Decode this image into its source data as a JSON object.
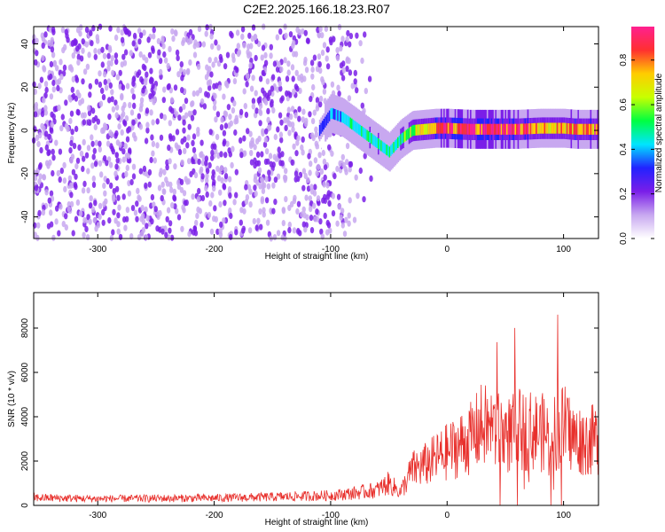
{
  "figure_title": "C2E2.2025.166.18.23.R07",
  "chart_data": [
    {
      "type": "heatmap",
      "xlabel": "Height of straight line (km)",
      "ylabel": "Frequency (Hz)",
      "xlim": [
        -355,
        130
      ],
      "ylim": [
        -50,
        48
      ],
      "x_ticks": [
        -300,
        -200,
        -100,
        0,
        100
      ],
      "x_tick_labels": [
        "-300",
        "-200",
        "-100",
        "0",
        "100"
      ],
      "y_ticks": [
        -40,
        -20,
        0,
        20,
        40
      ],
      "y_tick_labels": [
        "-40",
        "-20",
        "0",
        "20",
        "40"
      ],
      "grid": false,
      "colorbar": {
        "label": "Normalized spectral amplitude",
        "range": [
          0,
          0.95
        ],
        "ticks": [
          0,
          0.2,
          0.4,
          0.6,
          0.8
        ],
        "tick_labels": [
          "0.0",
          "0.2",
          "0.4",
          "0.6",
          "0.8"
        ],
        "colormap": [
          "#ffffff",
          "#c8a8f0",
          "#7a1ee8",
          "#2222ff",
          "#00e5ff",
          "#00ff40",
          "#c8ff00",
          "#ffcc00",
          "#ff3030",
          "#ff2090"
        ]
      },
      "features": {
        "noise_region_x": [
          -355,
          -100
        ],
        "noise_amplitude": 0.2,
        "signal_track": {
          "x": [
            -110,
            -100,
            -90,
            -80,
            -70,
            -60,
            -50,
            -40,
            -30,
            -20,
            -10,
            0,
            20,
            40,
            60,
            80,
            90,
            100,
            110,
            130
          ],
          "y": [
            0,
            8,
            6,
            2,
            -2,
            -6,
            -10,
            -4,
            0,
            0.5,
            1,
            1,
            0.5,
            0.5,
            0.5,
            1,
            1,
            1,
            0.5,
            0.5
          ],
          "amplitude": [
            0.25,
            0.35,
            0.4,
            0.45,
            0.45,
            0.5,
            0.45,
            0.5,
            0.6,
            0.7,
            0.8,
            0.85,
            0.9,
            0.9,
            0.85,
            0.75,
            0.7,
            0.75,
            0.8,
            0.8
          ]
        }
      }
    },
    {
      "type": "line",
      "xlabel": "Height of straight line (km)",
      "ylabel": "SNR (10 * v/v)",
      "xlim": [
        -355,
        130
      ],
      "ylim": [
        0,
        9600
      ],
      "x_ticks": [
        -300,
        -200,
        -100,
        0,
        100
      ],
      "x_tick_labels": [
        "-300",
        "-200",
        "-100",
        "0",
        "100"
      ],
      "y_ticks": [
        0,
        2000,
        4000,
        6000,
        8000
      ],
      "y_tick_labels": [
        "0",
        "2000",
        "4000",
        "6000",
        "8000"
      ],
      "grid": false,
      "series": [
        {
          "color": "#e8302c",
          "envelope_x": [
            -355,
            -300,
            -200,
            -150,
            -100,
            -80,
            -60,
            -50,
            -40,
            -30,
            -20,
            0,
            20,
            30,
            40,
            50,
            60,
            70,
            80,
            90,
            100,
            110,
            120,
            130
          ],
          "envelope_y": [
            350,
            300,
            330,
            380,
            450,
            550,
            700,
            1000,
            600,
            1600,
            1800,
            2400,
            3000,
            3600,
            3400,
            3200,
            3300,
            3400,
            3300,
            3200,
            3600,
            3000,
            2900,
            3000
          ]
        }
      ]
    }
  ]
}
